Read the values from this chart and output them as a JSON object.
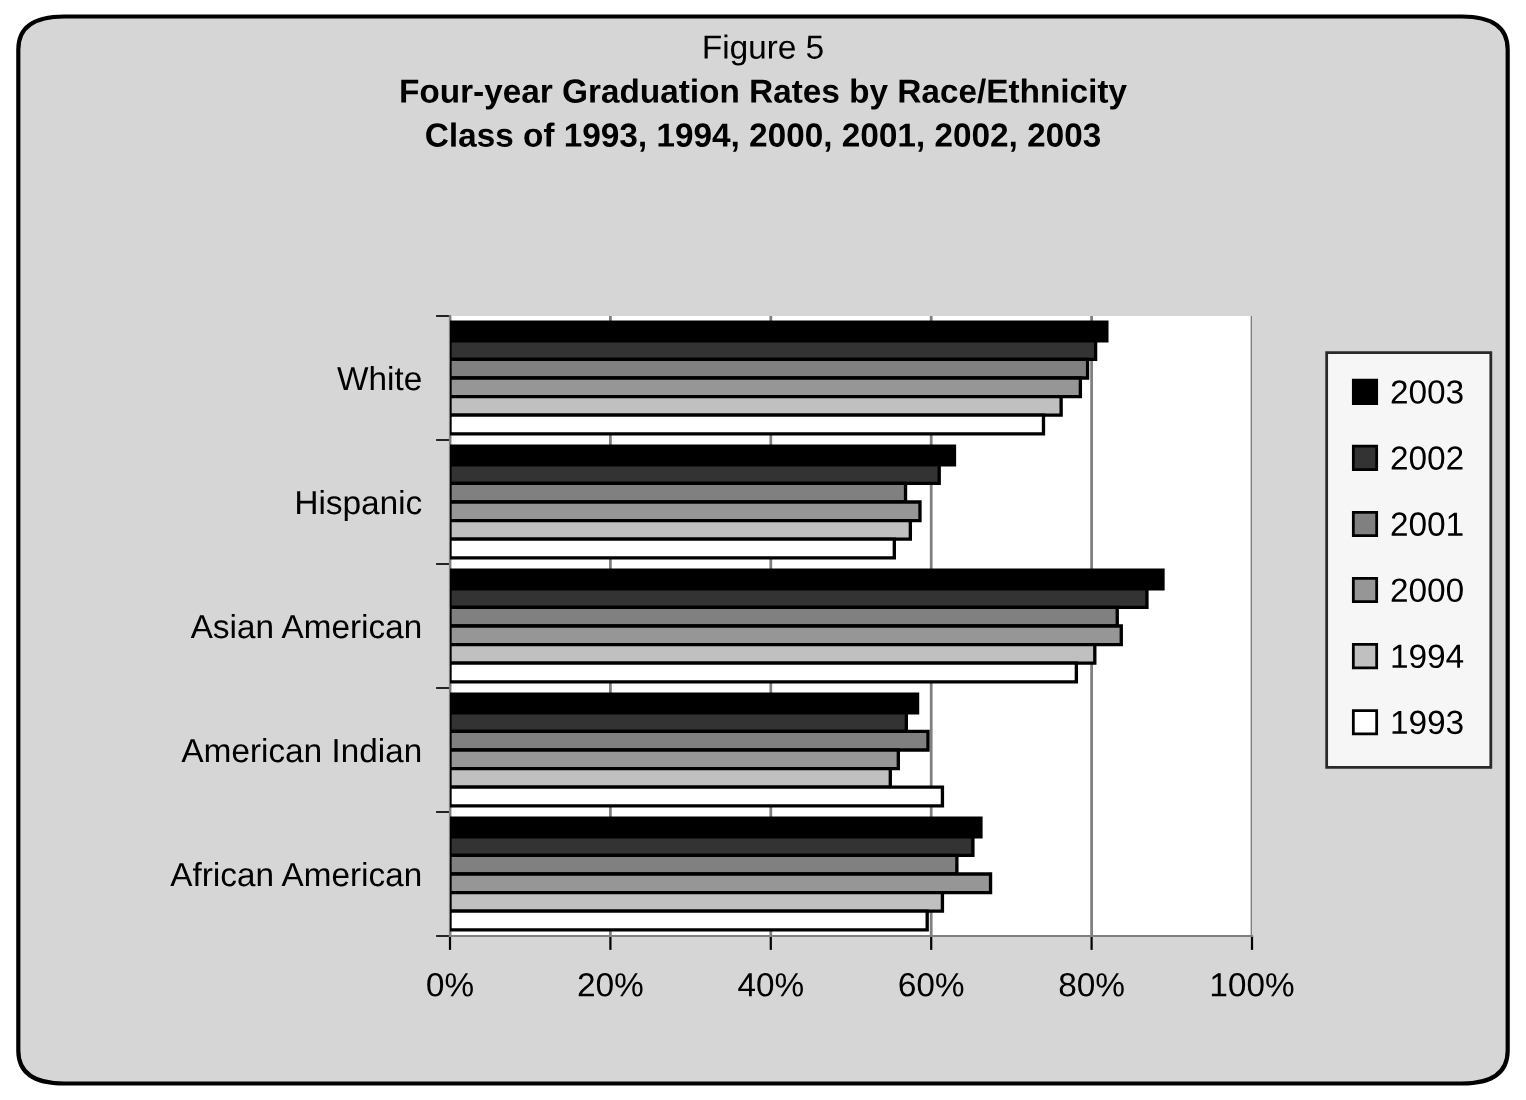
{
  "chart_data": {
    "type": "bar",
    "orientation": "horizontal",
    "title": "Four-year Graduation Rates by Race/Ethnicity",
    "subtitle": "Class of 1993, 1994, 2000, 2001, 2002, 2003",
    "annotations": [
      "Figure 5"
    ],
    "categories": [
      "White",
      "Hispanic",
      "Asian American",
      "American Indian",
      "African American"
    ],
    "series": [
      {
        "name": "2003",
        "color": "#000000",
        "values": [
          81.9,
          62.9,
          88.9,
          58.3,
          66.2
        ]
      },
      {
        "name": "2002",
        "color": "#333333",
        "values": [
          80.5,
          61.0,
          86.9,
          56.9,
          65.2
        ]
      },
      {
        "name": "2001",
        "color": "#808080",
        "values": [
          79.5,
          56.8,
          83.2,
          59.6,
          63.2
        ]
      },
      {
        "name": "2000",
        "color": "#969696",
        "values": [
          78.6,
          58.6,
          83.7,
          55.9,
          67.4
        ]
      },
      {
        "name": "1994",
        "color": "#c0c0c0",
        "values": [
          76.2,
          57.4,
          80.4,
          54.9,
          61.4
        ]
      },
      {
        "name": "1993",
        "color": "#ffffff",
        "values": [
          74.0,
          55.4,
          78.1,
          61.4,
          59.5
        ]
      }
    ],
    "xlim": [
      0,
      100
    ],
    "xticks": [
      {
        "value": 0,
        "label": "0%"
      },
      {
        "value": 20,
        "label": "20%"
      },
      {
        "value": 40,
        "label": "40%"
      },
      {
        "value": 60,
        "label": "60%"
      },
      {
        "value": 80,
        "label": "80%"
      },
      {
        "value": 100,
        "label": "100%"
      }
    ],
    "grid": "x",
    "legend": "right"
  }
}
